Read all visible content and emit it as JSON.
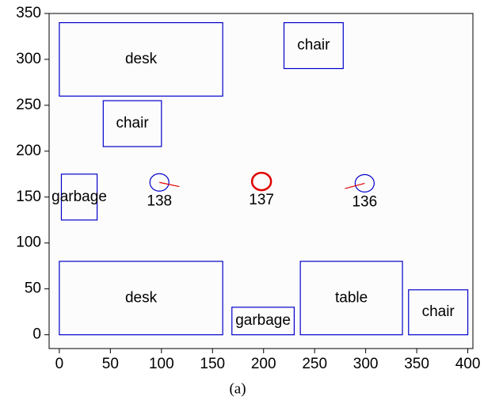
{
  "chart_data": {
    "type": "floorplan",
    "caption": "(a)",
    "xlim": [
      -10,
      405
    ],
    "ylim": [
      -15,
      350
    ],
    "xticks": [
      0,
      50,
      100,
      150,
      200,
      250,
      300,
      350,
      400
    ],
    "yticks": [
      0,
      50,
      100,
      150,
      200,
      250,
      300,
      350
    ],
    "object_color": "#0000cc",
    "objects": [
      {
        "label": "desk",
        "x": [
          0,
          160
        ],
        "y": [
          260,
          340
        ]
      },
      {
        "label": "chair",
        "x": [
          220,
          278
        ],
        "y": [
          290,
          340
        ]
      },
      {
        "label": "chair",
        "x": [
          43,
          100
        ],
        "y": [
          205,
          255
        ]
      },
      {
        "label": "garbage",
        "x": [
          2,
          37
        ],
        "y": [
          125,
          175
        ]
      },
      {
        "label": "desk",
        "x": [
          0,
          160
        ],
        "y": [
          0,
          80
        ]
      },
      {
        "label": "garbage",
        "x": [
          169,
          230
        ],
        "y": [
          0,
          30
        ]
      },
      {
        "label": "table",
        "x": [
          236,
          336
        ],
        "y": [
          0,
          80
        ]
      },
      {
        "label": "chair",
        "x": [
          342,
          400
        ],
        "y": [
          0,
          49
        ]
      }
    ],
    "agents": [
      {
        "label": "138",
        "x": 98,
        "y": 166,
        "color": "#0000cc",
        "heading": -12
      },
      {
        "label": "137",
        "x": 198,
        "y": 167,
        "color": "#e00000",
        "heading": null
      },
      {
        "label": "136",
        "x": 299,
        "y": 165,
        "color": "#0000cc",
        "heading": 195
      }
    ]
  }
}
